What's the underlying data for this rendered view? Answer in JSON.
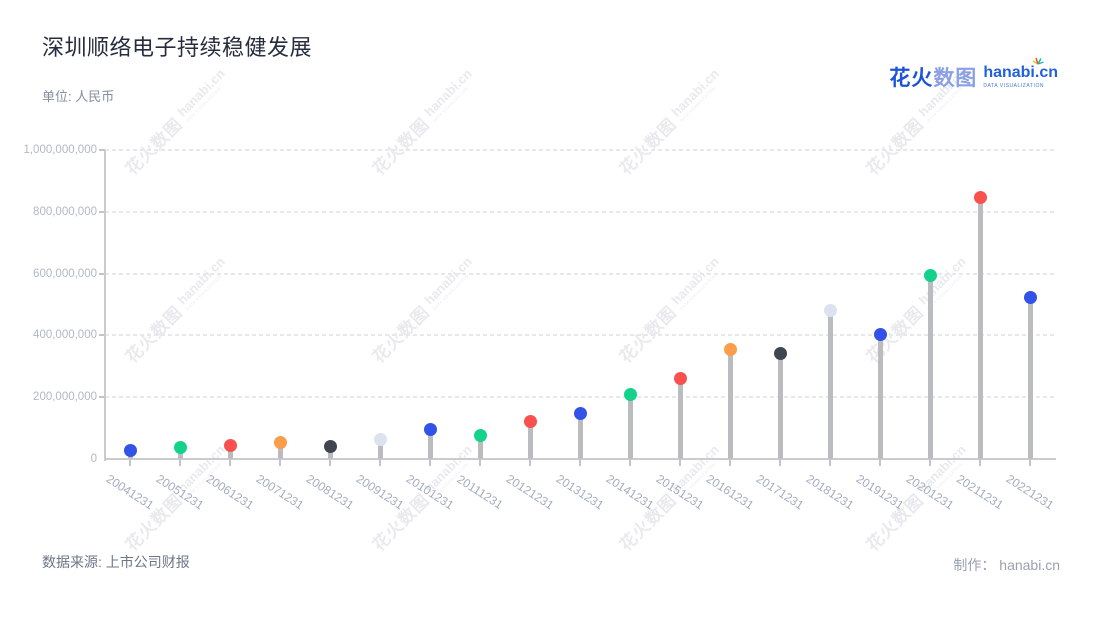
{
  "page": {
    "background": "#ffffff"
  },
  "header": {
    "title": "深圳顺络电子持续稳健发展",
    "unit_label": "单位: 人民币"
  },
  "logo": {
    "brand_cn_bold": "花火",
    "brand_cn_light": "数图",
    "domain": "hanabi.cn",
    "tagline": "DATA VISUALIZATION",
    "brand_blue": "#1d53d7",
    "brand_light_blue": "#8ba0e2",
    "domain_blue": "#2161df"
  },
  "footer": {
    "source": "数据来源: 上市公司财报",
    "credit": "制作： hanabi.cn"
  },
  "chart_data": {
    "type": "lollipop",
    "title": "深圳顺络电子持续稳健发展",
    "unit": "人民币",
    "xlabel": "",
    "ylabel": "",
    "legend": "none",
    "grid": "dashed-horizontal",
    "ylim": [
      0,
      1000000000
    ],
    "y_tick_labels": [
      "1,000,000,000",
      "800,000,000",
      "600,000,000",
      "400,000,000",
      "200,000,000",
      "0"
    ],
    "categories": [
      "20041231",
      "20051231",
      "20061231",
      "20071231",
      "20081231",
      "20091231",
      "20101231",
      "20111231",
      "20121231",
      "20131231",
      "20141231",
      "20151231",
      "20161231",
      "20171231",
      "20181231",
      "20191231",
      "20201231",
      "20211231",
      "20221231"
    ],
    "values": [
      26000000,
      36000000,
      43000000,
      55000000,
      41000000,
      62000000,
      94000000,
      77000000,
      121000000,
      146000000,
      210000000,
      260000000,
      355000000,
      340000000,
      479000000,
      404000000,
      595000000,
      845000000,
      522000000
    ],
    "point_colors": [
      "#3352e8",
      "#12d28c",
      "#f8514e",
      "#fb9d4a",
      "#40464f",
      "#dde2ef",
      "#3352e8",
      "#12d28c",
      "#f8514e",
      "#3352e8",
      "#12d28c",
      "#f8514e",
      "#fb9d4a",
      "#40464f",
      "#dde2ef",
      "#3352e8",
      "#12d28c",
      "#f8514e",
      "#3352e8"
    ]
  },
  "style": {
    "axis_color": "#c9cbd1",
    "grid_color": "#e7e8ec",
    "stem_color": "#babcc0",
    "title_color": "#272c3e",
    "unit_color": "#858da0",
    "y_label_color": "#b2b8c4",
    "x_label_color": "#a5acc0",
    "source_color": "#6d7587",
    "credit_color": "#99a0ae",
    "watermark_color": "#e9eaee"
  }
}
